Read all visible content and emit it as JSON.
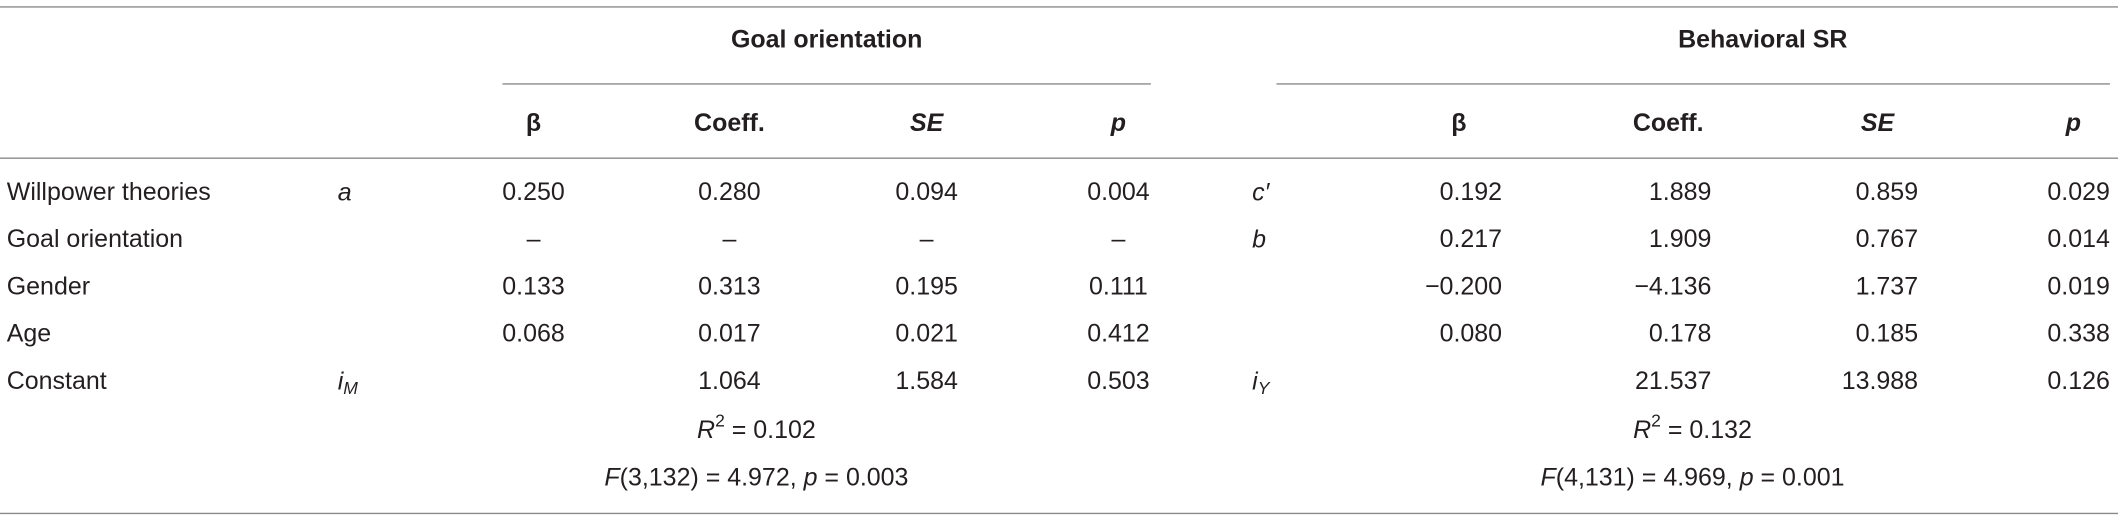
{
  "table": {
    "groups": [
      "Goal orientation",
      "Behavioral SR"
    ],
    "columns": [
      [
        {
          "text": "β",
          "italic": false
        },
        {
          "text": "Coeff.",
          "italic": false
        },
        {
          "text": "SE",
          "italic": true
        },
        {
          "text": "p",
          "italic": true
        }
      ],
      [
        {
          "text": "β",
          "italic": false
        },
        {
          "text": "Coeff.",
          "italic": false
        },
        {
          "text": "SE",
          "italic": true
        },
        {
          "text": "p",
          "italic": true
        }
      ]
    ],
    "rows": [
      {
        "label": "Willpower theories",
        "symbols": [
          {
            "base": "a"
          },
          {
            "base": "c′"
          }
        ],
        "values": [
          [
            "0.250",
            "0.280",
            "0.094",
            "0.004"
          ],
          [
            "0.192",
            "1.889",
            "0.859",
            "0.029"
          ]
        ]
      },
      {
        "label": "Goal orientation",
        "symbols": [
          null,
          {
            "base": "b"
          }
        ],
        "values": [
          [
            "–",
            "–",
            "–",
            "–"
          ],
          [
            "0.217",
            "1.909",
            "0.767",
            "0.014"
          ]
        ]
      },
      {
        "label": "Gender",
        "symbols": [
          null,
          null
        ],
        "values": [
          [
            "0.133",
            "0.313",
            "0.195",
            "0.111"
          ],
          [
            "−0.200",
            "−4.136",
            "1.737",
            "0.019"
          ]
        ]
      },
      {
        "label": "Age",
        "symbols": [
          null,
          null
        ],
        "values": [
          [
            "0.068",
            "0.017",
            "0.021",
            "0.412"
          ],
          [
            "0.080",
            "0.178",
            "0.185",
            "0.338"
          ]
        ]
      },
      {
        "label": "Constant",
        "symbols": [
          {
            "base": "i",
            "sub": "M"
          },
          {
            "base": "i",
            "sub": "Y"
          }
        ],
        "values": [
          [
            null,
            "1.064",
            "1.584",
            "0.503"
          ],
          [
            null,
            "21.537",
            "13.988",
            "0.126"
          ]
        ]
      }
    ],
    "fit": [
      {
        "r2": {
          "sym": "R",
          "sup": "2",
          "rest": " = 0.102"
        },
        "f": {
          "sym": "F",
          "mid": "(3,132) = 4.972, ",
          "p": "p",
          "rest": " = 0.003"
        }
      },
      {
        "r2": {
          "sym": "R",
          "sup": "2",
          "rest": " = 0.132"
        },
        "f": {
          "sym": "F",
          "mid": "(4,131) = 4.969, ",
          "p": "p",
          "rest": " = 0.001"
        }
      }
    ]
  }
}
